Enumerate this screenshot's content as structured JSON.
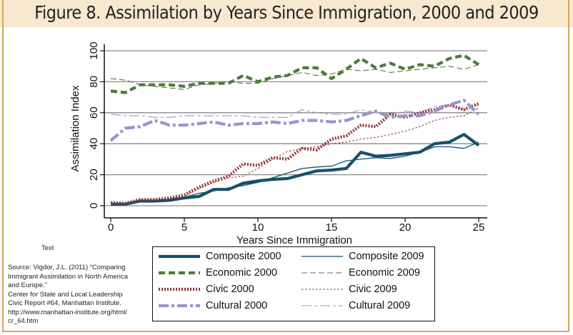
{
  "figure": {
    "title": "Figure 8. Assimilation by Years Since Immigration, 2000 and 2009",
    "side_label": "Text",
    "source_lines": [
      "Source: Vigdor, J.L. (2011) “Comparing",
      "Immigrant Assimilation in North America",
      "and Europe.”",
      "Center for State and Local Leadership",
      "Civic Report #64, Manhattan Institute.",
      "http://www.manhattan-institute.org/html/",
      "cr_64.htm"
    ],
    "colors": {
      "title_band": "#f8e8cf",
      "frame": "#d9a55a",
      "composite": "#16506e",
      "economic": "#4f7a3e",
      "civic": "#94323a",
      "cultural": "#9a93cf",
      "grid": "#8a8a8a"
    }
  },
  "chart_data": {
    "type": "line",
    "title": "Figure 8. Assimilation by Years Since Immigration, 2000 and 2009",
    "xlabel": "Years Since Immigration",
    "ylabel": "Assimilation Index",
    "xlim": [
      0,
      25
    ],
    "ylim": [
      0,
      100
    ],
    "xticks": [
      0,
      5,
      10,
      15,
      20,
      25
    ],
    "yticks": [
      0,
      20,
      40,
      60,
      80,
      100
    ],
    "grid": "horizontal",
    "legend_position": "bottom",
    "x": [
      0,
      1,
      2,
      3,
      4,
      5,
      6,
      7,
      8,
      9,
      10,
      11,
      12,
      13,
      14,
      15,
      16,
      17,
      18,
      19,
      20,
      21,
      22,
      23,
      24,
      25
    ],
    "series": [
      {
        "name": "Composite 2000",
        "style": "thick-solid",
        "color": "#16506e",
        "values": [
          1,
          1,
          3,
          3,
          3.5,
          5,
          6,
          10.5,
          10.5,
          14.5,
          16,
          17,
          17.5,
          20,
          22.5,
          23,
          24,
          34.5,
          32,
          32.5,
          33.5,
          34.5,
          40,
          41,
          46,
          39
        ]
      },
      {
        "name": "Composite 2009",
        "style": "thin-solid",
        "color": "#16506e",
        "values": [
          1,
          1,
          3,
          3,
          3.5,
          5.5,
          8,
          9.5,
          11.5,
          13,
          15,
          18,
          21,
          24,
          25,
          25.5,
          29,
          30,
          31,
          30.5,
          32,
          34.5,
          38,
          38,
          37,
          41
        ]
      },
      {
        "name": "Economic 2000",
        "style": "thick-dash",
        "color": "#4f7a3e",
        "values": [
          74,
          73,
          78,
          78,
          78,
          77,
          79,
          79,
          79,
          84,
          80,
          83,
          84,
          89,
          89,
          82,
          88,
          95,
          89,
          92,
          88,
          91,
          90,
          95,
          97,
          91
        ]
      },
      {
        "name": "Economic 2009",
        "style": "thin-dash",
        "color": "#4f7a3e",
        "values": [
          82,
          81,
          78,
          77,
          76,
          75,
          78,
          79,
          80,
          79,
          79,
          82,
          84,
          86,
          84,
          85,
          88,
          87,
          88,
          86,
          87,
          88,
          89,
          90,
          88,
          91
        ]
      },
      {
        "name": "Civic 2000",
        "style": "thick-dot",
        "color": "#94323a",
        "values": [
          2,
          1.5,
          4,
          4,
          5,
          7,
          12,
          16,
          19,
          27,
          26,
          31,
          30,
          37,
          36,
          43,
          45,
          52,
          51,
          59,
          57,
          60,
          62,
          65,
          62,
          66
        ]
      },
      {
        "name": "Civic 2009",
        "style": "thin-dot",
        "color": "#94323a",
        "values": [
          1.5,
          1.5,
          3,
          3.5,
          4.5,
          6,
          11,
          15,
          18,
          19,
          24,
          30,
          35,
          37,
          38,
          40,
          41,
          43,
          44,
          46,
          48,
          51,
          55,
          57,
          58,
          63
        ]
      },
      {
        "name": "Cultural 2000",
        "style": "thick-dashdot",
        "color": "#9a93cf",
        "values": [
          42,
          50,
          51,
          55,
          52,
          52,
          53,
          54,
          52,
          53,
          53,
          54,
          53,
          55,
          55,
          54,
          55,
          58,
          61,
          57,
          58,
          58,
          61,
          65,
          68,
          59
        ]
      },
      {
        "name": "Cultural 2009",
        "style": "thin-dashdot",
        "color": "#9a93cf",
        "values": [
          59,
          58,
          58,
          57,
          57,
          58,
          58,
          58,
          58,
          58,
          57,
          57,
          57,
          62,
          60,
          59,
          59,
          62,
          60,
          59,
          61,
          60,
          64,
          65,
          62,
          65
        ]
      }
    ]
  }
}
